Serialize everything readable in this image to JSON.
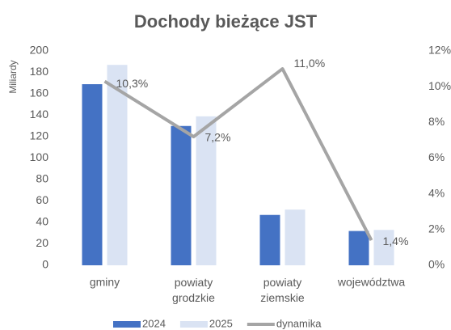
{
  "chart_data": {
    "type": "bar",
    "title": "Dochody bieżące JST",
    "ylabel": "Miliardy",
    "categories": [
      "gminy",
      "powiaty grodzkie",
      "powiaty ziemskie",
      "województwa"
    ],
    "series": [
      {
        "name": "2024",
        "color": "#4472c4",
        "values": [
          169,
          130,
          47,
          32
        ]
      },
      {
        "name": "2025",
        "color": "#dae3f3",
        "values": [
          187,
          139,
          52,
          33
        ]
      },
      {
        "name": "dynamika",
        "color": "#a5a5a5",
        "type": "line",
        "axis": "y2",
        "values": [
          10.3,
          7.2,
          11.0,
          1.4
        ],
        "value_labels": [
          "10,3%",
          "7,2%",
          "11,0%",
          "1,4%"
        ]
      }
    ],
    "ylim": [
      0,
      200
    ],
    "yticks": [
      0,
      20,
      40,
      60,
      80,
      100,
      120,
      140,
      160,
      180,
      200
    ],
    "y2lim": [
      0,
      12
    ],
    "y2ticks": [
      {
        "value": 0,
        "label": "0%"
      },
      {
        "value": 2,
        "label": "2%"
      },
      {
        "value": 4,
        "label": "4%"
      },
      {
        "value": 6,
        "label": "6%"
      },
      {
        "value": 8,
        "label": "8%"
      },
      {
        "value": 10,
        "label": "10%"
      },
      {
        "value": 12,
        "label": "12%"
      }
    ],
    "grid": false,
    "legend": "bottom"
  }
}
